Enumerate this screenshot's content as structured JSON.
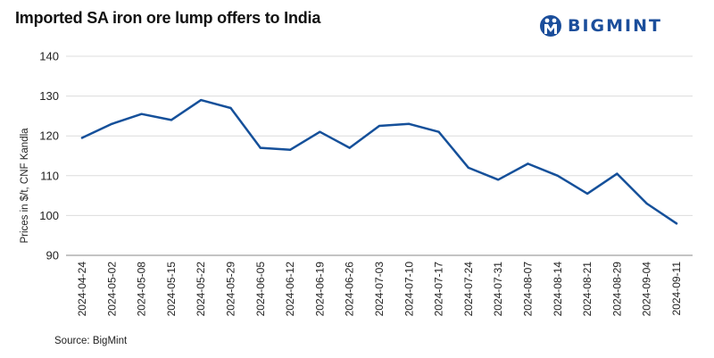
{
  "title": "Imported SA iron ore lump offers to India",
  "brand": {
    "name": "BIGMINT",
    "icon": "bigmint-logo-icon",
    "color": "#1b4e9b"
  },
  "source": "Source: BigMint",
  "colors": {
    "line": "#15509a",
    "grid": "#dcdcdc",
    "axis": "#888888"
  },
  "chart_data": {
    "type": "line",
    "title": "Imported SA iron ore lump offers to India",
    "xlabel": "",
    "ylabel": "Prices in $/t, CNF Kandla",
    "ylim": [
      90,
      140
    ],
    "yticks": [
      90,
      100,
      110,
      120,
      130,
      140
    ],
    "grid": true,
    "legend": "none",
    "categories": [
      "2024-04-24",
      "2024-05-02",
      "2024-05-08",
      "2024-05-15",
      "2024-05-22",
      "2024-05-29",
      "2024-06-05",
      "2024-06-12",
      "2024-06-19",
      "2024-06-26",
      "2024-07-03",
      "2024-07-10",
      "2024-07-17",
      "2024-07-24",
      "2024-07-31",
      "2024-08-07",
      "2024-08-14",
      "2024-08-21",
      "2024-08-29",
      "2024-09-04",
      "2024-09-11"
    ],
    "series": [
      {
        "values": [
          119.5,
          123,
          125.5,
          124,
          129,
          127,
          117,
          116.5,
          121,
          117,
          122.5,
          123,
          121,
          112,
          109,
          113,
          110,
          105.5,
          110.5,
          103,
          98
        ]
      }
    ]
  }
}
